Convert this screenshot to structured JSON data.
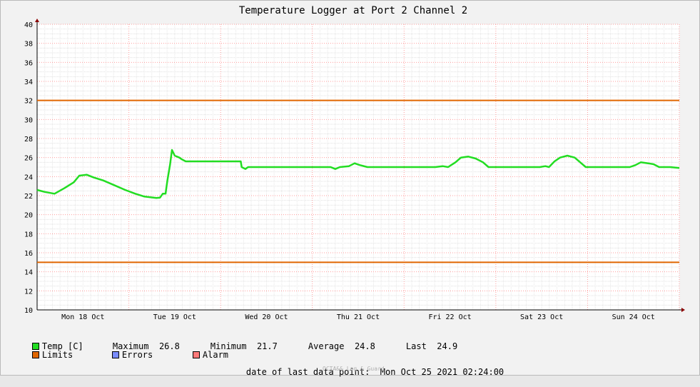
{
  "chart_data": {
    "type": "line",
    "title": "Temperature Logger at Port 2 Channel 2",
    "xlabel": "",
    "ylabel": "",
    "ylim": [
      10,
      40
    ],
    "yticks": [
      10,
      12,
      14,
      16,
      18,
      20,
      22,
      24,
      26,
      28,
      30,
      32,
      34,
      36,
      38,
      40
    ],
    "xlim": [
      0,
      7
    ],
    "x_ticks": [
      {
        "x": 0.5,
        "label": "Mon 18 Oct"
      },
      {
        "x": 1.5,
        "label": "Tue 19 Oct"
      },
      {
        "x": 2.5,
        "label": "Wed 20 Oct"
      },
      {
        "x": 3.5,
        "label": "Thu 21 Oct"
      },
      {
        "x": 4.5,
        "label": "Fri 22 Oct"
      },
      {
        "x": 5.5,
        "label": "Sat 23 Oct"
      },
      {
        "x": 6.5,
        "label": "Sun 24 Oct"
      }
    ],
    "grid": true,
    "series": [
      {
        "name": "Temp [C]",
        "color": "#22dd22",
        "points": [
          [
            0.0,
            22.6
          ],
          [
            0.08,
            22.4
          ],
          [
            0.19,
            22.2
          ],
          [
            0.3,
            22.8
          ],
          [
            0.4,
            23.4
          ],
          [
            0.46,
            24.1
          ],
          [
            0.54,
            24.2
          ],
          [
            0.62,
            23.9
          ],
          [
            0.72,
            23.6
          ],
          [
            0.84,
            23.1
          ],
          [
            0.96,
            22.6
          ],
          [
            1.07,
            22.2
          ],
          [
            1.17,
            21.9
          ],
          [
            1.3,
            21.75
          ],
          [
            1.34,
            21.8
          ],
          [
            1.37,
            22.2
          ],
          [
            1.4,
            22.2
          ],
          [
            1.42,
            23.6
          ],
          [
            1.45,
            25.3
          ],
          [
            1.47,
            26.8
          ],
          [
            1.5,
            26.2
          ],
          [
            1.55,
            26.0
          ],
          [
            1.58,
            25.8
          ],
          [
            1.62,
            25.6
          ],
          [
            1.7,
            25.6
          ],
          [
            1.8,
            25.6
          ],
          [
            1.9,
            25.6
          ],
          [
            2.0,
            25.6
          ],
          [
            2.1,
            25.6
          ],
          [
            2.2,
            25.6
          ],
          [
            2.22,
            25.6
          ],
          [
            2.23,
            25.0
          ],
          [
            2.27,
            24.8
          ],
          [
            2.3,
            25.0
          ],
          [
            2.4,
            25.0
          ],
          [
            2.5,
            25.0
          ],
          [
            2.6,
            25.0
          ],
          [
            2.7,
            25.0
          ],
          [
            2.8,
            25.0
          ],
          [
            2.9,
            25.0
          ],
          [
            3.0,
            25.0
          ],
          [
            3.1,
            25.0
          ],
          [
            3.2,
            25.0
          ],
          [
            3.25,
            24.8
          ],
          [
            3.3,
            25.0
          ],
          [
            3.4,
            25.1
          ],
          [
            3.46,
            25.4
          ],
          [
            3.52,
            25.2
          ],
          [
            3.6,
            25.0
          ],
          [
            3.7,
            25.0
          ],
          [
            3.8,
            25.0
          ],
          [
            3.9,
            25.0
          ],
          [
            4.0,
            25.0
          ],
          [
            4.1,
            25.0
          ],
          [
            4.2,
            25.0
          ],
          [
            4.34,
            25.0
          ],
          [
            4.42,
            25.1
          ],
          [
            4.48,
            25.0
          ],
          [
            4.56,
            25.5
          ],
          [
            4.62,
            26.0
          ],
          [
            4.7,
            26.1
          ],
          [
            4.78,
            25.9
          ],
          [
            4.86,
            25.5
          ],
          [
            4.92,
            25.0
          ],
          [
            5.0,
            25.0
          ],
          [
            5.1,
            25.0
          ],
          [
            5.2,
            25.0
          ],
          [
            5.3,
            25.0
          ],
          [
            5.4,
            25.0
          ],
          [
            5.48,
            25.0
          ],
          [
            5.54,
            25.1
          ],
          [
            5.58,
            25.0
          ],
          [
            5.64,
            25.6
          ],
          [
            5.7,
            26.0
          ],
          [
            5.78,
            26.2
          ],
          [
            5.86,
            26.0
          ],
          [
            5.92,
            25.5
          ],
          [
            5.98,
            25.0
          ],
          [
            6.1,
            25.0
          ],
          [
            6.2,
            25.0
          ],
          [
            6.3,
            25.0
          ],
          [
            6.4,
            25.0
          ],
          [
            6.46,
            25.0
          ],
          [
            6.52,
            25.2
          ],
          [
            6.58,
            25.5
          ],
          [
            6.66,
            25.4
          ],
          [
            6.72,
            25.3
          ],
          [
            6.78,
            25.0
          ],
          [
            6.9,
            25.0
          ],
          [
            7.0,
            24.9
          ]
        ]
      },
      {
        "name": "Limits",
        "color": "#e06600",
        "values": [
          32,
          15
        ]
      }
    ]
  },
  "legend": {
    "temp": {
      "label": "Temp [C]",
      "color": "#22dd22"
    },
    "limits": {
      "label": "Limits",
      "color": "#e06600"
    },
    "errors": {
      "label": "Errors",
      "color": "#7a8cff"
    },
    "alarm": {
      "label": "Alarm",
      "color": "#ff7a7a"
    }
  },
  "stats": {
    "max_label": "Maximum",
    "max_value": "26.8",
    "min_label": "Minimum",
    "min_value": "21.7",
    "avg_label": "Average",
    "avg_value": "24.8",
    "last_label": "Last",
    "last_value": "24.9"
  },
  "footer": {
    "last_point_label": "date of last data point:",
    "last_point_value": "Mon Oct 25 2021 02:24:00",
    "brand": "OCTA&& Log & Guard"
  }
}
